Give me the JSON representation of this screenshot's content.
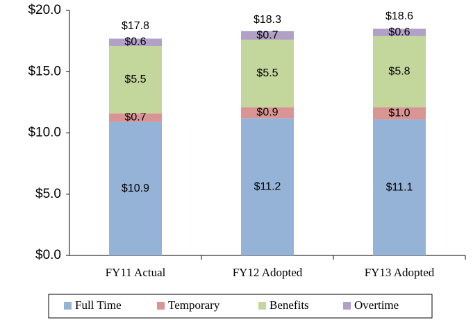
{
  "chart_data": {
    "type": "stacked_bar",
    "categories": [
      "FY11 Actual",
      "FY12 Adopted",
      "FY13 Adopted"
    ],
    "series": [
      {
        "name": "Full Time",
        "color": "#95b3d7",
        "values": [
          10.9,
          11.2,
          11.1
        ],
        "value_labels": [
          "$10.9",
          "$11.2",
          "$11.1"
        ]
      },
      {
        "name": "Temporary",
        "color": "#d99594",
        "values": [
          0.7,
          0.9,
          1.0
        ],
        "value_labels": [
          "$0.7",
          "$0.9",
          "$1.0"
        ]
      },
      {
        "name": "Benefits",
        "color": "#c3d69b",
        "values": [
          5.5,
          5.5,
          5.8
        ],
        "value_labels": [
          "$5.5",
          "$5.5",
          "$5.8"
        ]
      },
      {
        "name": "Overtime",
        "color": "#b2a1c7",
        "values": [
          0.6,
          0.7,
          0.6
        ],
        "value_labels": [
          "$0.6",
          "$0.7",
          "$0.6"
        ]
      }
    ],
    "totals": [
      17.8,
      18.3,
      18.6
    ],
    "total_labels": [
      "$17.8",
      "$18.3",
      "$18.6"
    ],
    "ylim": [
      0,
      20
    ],
    "yticks": [
      {
        "value": 0,
        "label": "$0.0"
      },
      {
        "value": 5,
        "label": "$5.0"
      },
      {
        "value": 10,
        "label": "$10.0"
      },
      {
        "value": 15,
        "label": "$15.0"
      },
      {
        "value": 20,
        "label": "$20.0"
      }
    ],
    "legend": "bottom"
  }
}
